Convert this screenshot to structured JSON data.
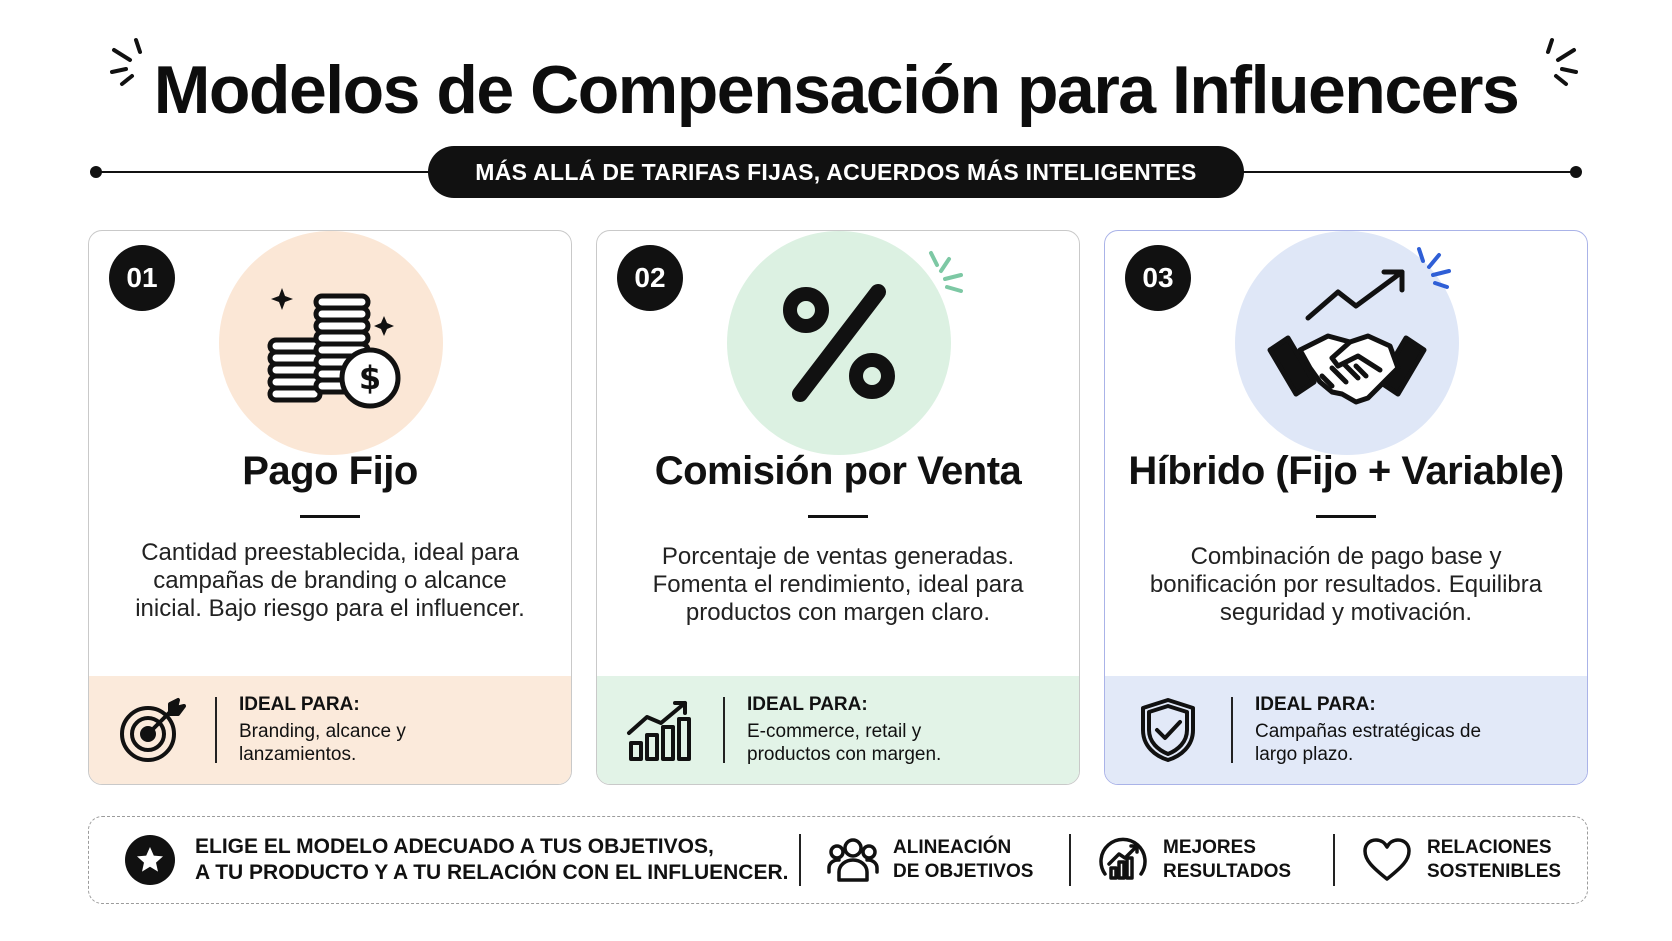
{
  "header": {
    "title": "Modelos de Compensación para Influencers",
    "subtitle": "MÁS ALLÁ DE TARIFAS FIJAS, ACUERDOS MÁS INTELIGENTES"
  },
  "cards": [
    {
      "number": "01",
      "icon": "coins-dollar-icon",
      "title": "Pago Fijo",
      "description": "Cantidad preestablecida, ideal para campañas de branding o alcance inicial. Bajo riesgo para el influencer.",
      "ideal_label": "IDEAL PARA:",
      "ideal_value": "Branding, alcance y lanzamientos.",
      "foot_icon": "target-icon",
      "color": "#fbe7d6"
    },
    {
      "number": "02",
      "icon": "percent-icon",
      "title": "Comisión por Venta",
      "description": "Porcentaje de ventas generadas. Fomenta el rendimiento, ideal para productos con margen claro.",
      "ideal_label": "IDEAL PARA:",
      "ideal_value": "E-commerce, retail y productos con margen.",
      "foot_icon": "growth-chart-icon",
      "color": "#dcf1e2"
    },
    {
      "number": "03",
      "icon": "handshake-icon",
      "title": "Híbrido (Fijo + Variable)",
      "description": "Combinación de pago base y bonificación por resultados. Equilibra seguridad y motivación.",
      "ideal_label": "IDEAL PARA:",
      "ideal_value": "Campañas estratégicas de largo plazo.",
      "foot_icon": "shield-check-icon",
      "color": "#dfe7f7"
    }
  ],
  "banner": {
    "message_line1": "ELIGE EL MODELO ADECUADO A TUS OBJETIVOS,",
    "message_line2": "A TU PRODUCTO Y A TU RELACIÓN CON EL INFLUENCER.",
    "items": [
      {
        "icon": "team-icon",
        "line1": "ALINEACIÓN",
        "line2": "DE OBJETIVOS"
      },
      {
        "icon": "results-gauge-icon",
        "line1": "MEJORES",
        "line2": "RESULTADOS"
      },
      {
        "icon": "heart-icon",
        "line1": "RELACIONES",
        "line2": "SOSTENIBLES"
      }
    ]
  }
}
